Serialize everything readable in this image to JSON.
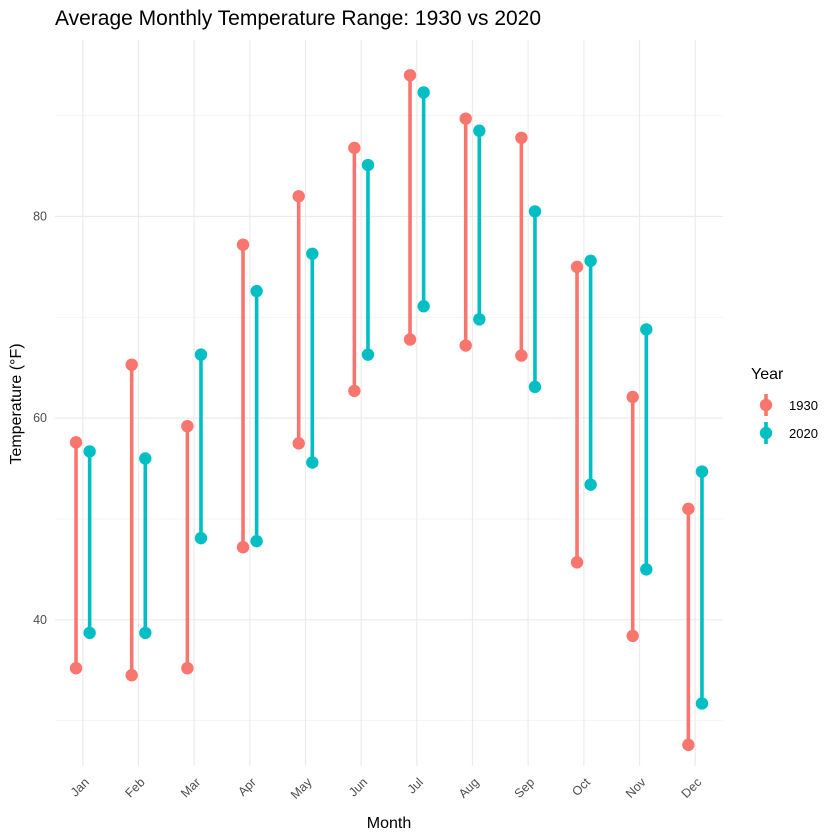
{
  "chart_data": {
    "type": "dumbbell",
    "title": "Average Monthly Temperature Range: 1930 vs 2020",
    "xlabel": "Month",
    "ylabel": "Temperature (°F)",
    "categories": [
      "Jan",
      "Feb",
      "Mar",
      "Apr",
      "May",
      "Jun",
      "Jul",
      "Aug",
      "Sep",
      "Oct",
      "Nov",
      "Dec"
    ],
    "ylim": [
      25.5,
      97.5
    ],
    "yticks": [
      40,
      60,
      80
    ],
    "grid": true,
    "legend": {
      "title": "Year",
      "placement": "right"
    },
    "series": [
      {
        "name": "1930",
        "color": "#F8766D",
        "low": [
          35.2,
          34.5,
          35.2,
          47.2,
          57.5,
          62.7,
          67.8,
          67.2,
          66.2,
          45.7,
          38.4,
          27.6
        ],
        "high": [
          57.6,
          65.3,
          59.2,
          77.2,
          82.0,
          86.8,
          94.0,
          89.7,
          87.8,
          75.0,
          62.1,
          51.0
        ]
      },
      {
        "name": "2020",
        "color": "#00BFC4",
        "low": [
          38.7,
          38.7,
          48.1,
          47.8,
          55.6,
          66.3,
          71.1,
          69.8,
          63.1,
          53.4,
          45.0,
          31.7
        ],
        "high": [
          56.7,
          56.0,
          66.3,
          72.6,
          76.3,
          85.1,
          92.3,
          88.5,
          80.5,
          75.6,
          68.8,
          54.7
        ]
      }
    ]
  }
}
